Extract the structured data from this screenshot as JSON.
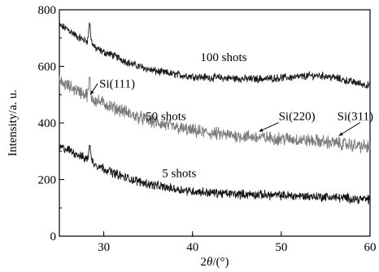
{
  "chart_data": {
    "type": "line",
    "xlabel_prefix": "2",
    "xlabel_theta": "θ",
    "xlabel_suffix": "/(°)",
    "ylabel": "Intensity/a. u.",
    "xlim": [
      25,
      60
    ],
    "ylim": [
      0,
      800
    ],
    "x_ticks": [
      30,
      40,
      50,
      60
    ],
    "y_ticks": [
      0,
      200,
      400,
      600,
      800
    ],
    "series": [
      {
        "name": "100 shots",
        "color": "#1a1a1a",
        "points": [
          [
            25,
            745
          ],
          [
            26,
            730
          ],
          [
            27,
            705
          ],
          [
            28,
            690
          ],
          [
            28.5,
            695
          ],
          [
            29,
            665
          ],
          [
            30,
            650
          ],
          [
            31,
            640
          ],
          [
            32,
            625
          ],
          [
            33,
            610
          ],
          [
            34,
            600
          ],
          [
            35,
            590
          ],
          [
            36,
            582
          ],
          [
            37,
            577
          ],
          [
            38,
            572
          ],
          [
            39,
            568
          ],
          [
            40,
            565
          ],
          [
            41,
            562
          ],
          [
            42,
            560
          ],
          [
            43,
            560
          ],
          [
            44,
            558
          ],
          [
            45,
            557
          ],
          [
            46,
            556
          ],
          [
            47,
            556
          ],
          [
            48,
            556
          ],
          [
            49,
            558
          ],
          [
            50,
            560
          ],
          [
            51,
            561
          ],
          [
            52,
            563
          ],
          [
            53,
            566
          ],
          [
            54,
            568
          ],
          [
            55,
            566
          ],
          [
            56,
            560
          ],
          [
            57,
            552
          ],
          [
            58,
            545
          ],
          [
            59,
            538
          ],
          [
            60,
            532
          ]
        ],
        "peaks": [
          [
            28.4,
            755
          ]
        ]
      },
      {
        "name": "50 shots",
        "color": "#7a7a7a",
        "points": [
          [
            25,
            545
          ],
          [
            26,
            530
          ],
          [
            27,
            515
          ],
          [
            28,
            500
          ],
          [
            28.5,
            495
          ],
          [
            29,
            480
          ],
          [
            30,
            470
          ],
          [
            31,
            455
          ],
          [
            32,
            445
          ],
          [
            33,
            430
          ],
          [
            34,
            420
          ],
          [
            35,
            410
          ],
          [
            36,
            400
          ],
          [
            37,
            392
          ],
          [
            38,
            385
          ],
          [
            39,
            378
          ],
          [
            40,
            372
          ],
          [
            41,
            368
          ],
          [
            42,
            364
          ],
          [
            43,
            360
          ],
          [
            44,
            357
          ],
          [
            45,
            355
          ],
          [
            46,
            352
          ],
          [
            47,
            350
          ],
          [
            48,
            348
          ],
          [
            49,
            346
          ],
          [
            50,
            345
          ],
          [
            51,
            343
          ],
          [
            52,
            341
          ],
          [
            53,
            338
          ],
          [
            54,
            336
          ],
          [
            55,
            333
          ],
          [
            56,
            330
          ],
          [
            57,
            326
          ],
          [
            58,
            322
          ],
          [
            59,
            318
          ],
          [
            60,
            315
          ]
        ],
        "peaks": [
          [
            28.4,
            555
          ]
        ]
      },
      {
        "name": "5 shots",
        "color": "#111111",
        "points": [
          [
            25,
            315
          ],
          [
            26,
            305
          ],
          [
            27,
            290
          ],
          [
            28,
            272
          ],
          [
            28.5,
            275
          ],
          [
            29,
            255
          ],
          [
            30,
            240
          ],
          [
            31,
            225
          ],
          [
            32,
            212
          ],
          [
            33,
            202
          ],
          [
            34,
            193
          ],
          [
            35,
            185
          ],
          [
            36,
            178
          ],
          [
            37,
            172
          ],
          [
            38,
            167
          ],
          [
            39,
            163
          ],
          [
            40,
            159
          ],
          [
            41,
            156
          ],
          [
            42,
            154
          ],
          [
            43,
            152
          ],
          [
            44,
            150
          ],
          [
            45,
            149
          ],
          [
            46,
            148
          ],
          [
            47,
            147
          ],
          [
            48,
            146
          ],
          [
            49,
            145
          ],
          [
            50,
            144
          ],
          [
            51,
            143
          ],
          [
            52,
            142
          ],
          [
            53,
            141
          ],
          [
            54,
            140
          ],
          [
            55,
            139
          ],
          [
            56,
            137
          ],
          [
            57,
            135
          ],
          [
            58,
            133
          ],
          [
            59,
            131
          ],
          [
            60,
            130
          ]
        ],
        "peaks": [
          [
            28.4,
            325
          ]
        ]
      }
    ],
    "labels": [
      {
        "text": "100 shots",
        "x": 43.5,
        "y": 618
      },
      {
        "text": "50 shots",
        "x": 37,
        "y": 410
      },
      {
        "text": "5 shots",
        "x": 38.5,
        "y": 208
      }
    ],
    "annotations": [
      {
        "text": "Si(111)",
        "x": 29.5,
        "y": 525,
        "arrow_to": [
          28.5,
          500
        ]
      },
      {
        "text": "Si(220)",
        "x": 49.7,
        "y": 410,
        "arrow_to": [
          47.5,
          370
        ]
      },
      {
        "text": "Si(311)",
        "x": 56.3,
        "y": 410,
        "arrow_to": [
          56.5,
          355
        ]
      }
    ]
  }
}
